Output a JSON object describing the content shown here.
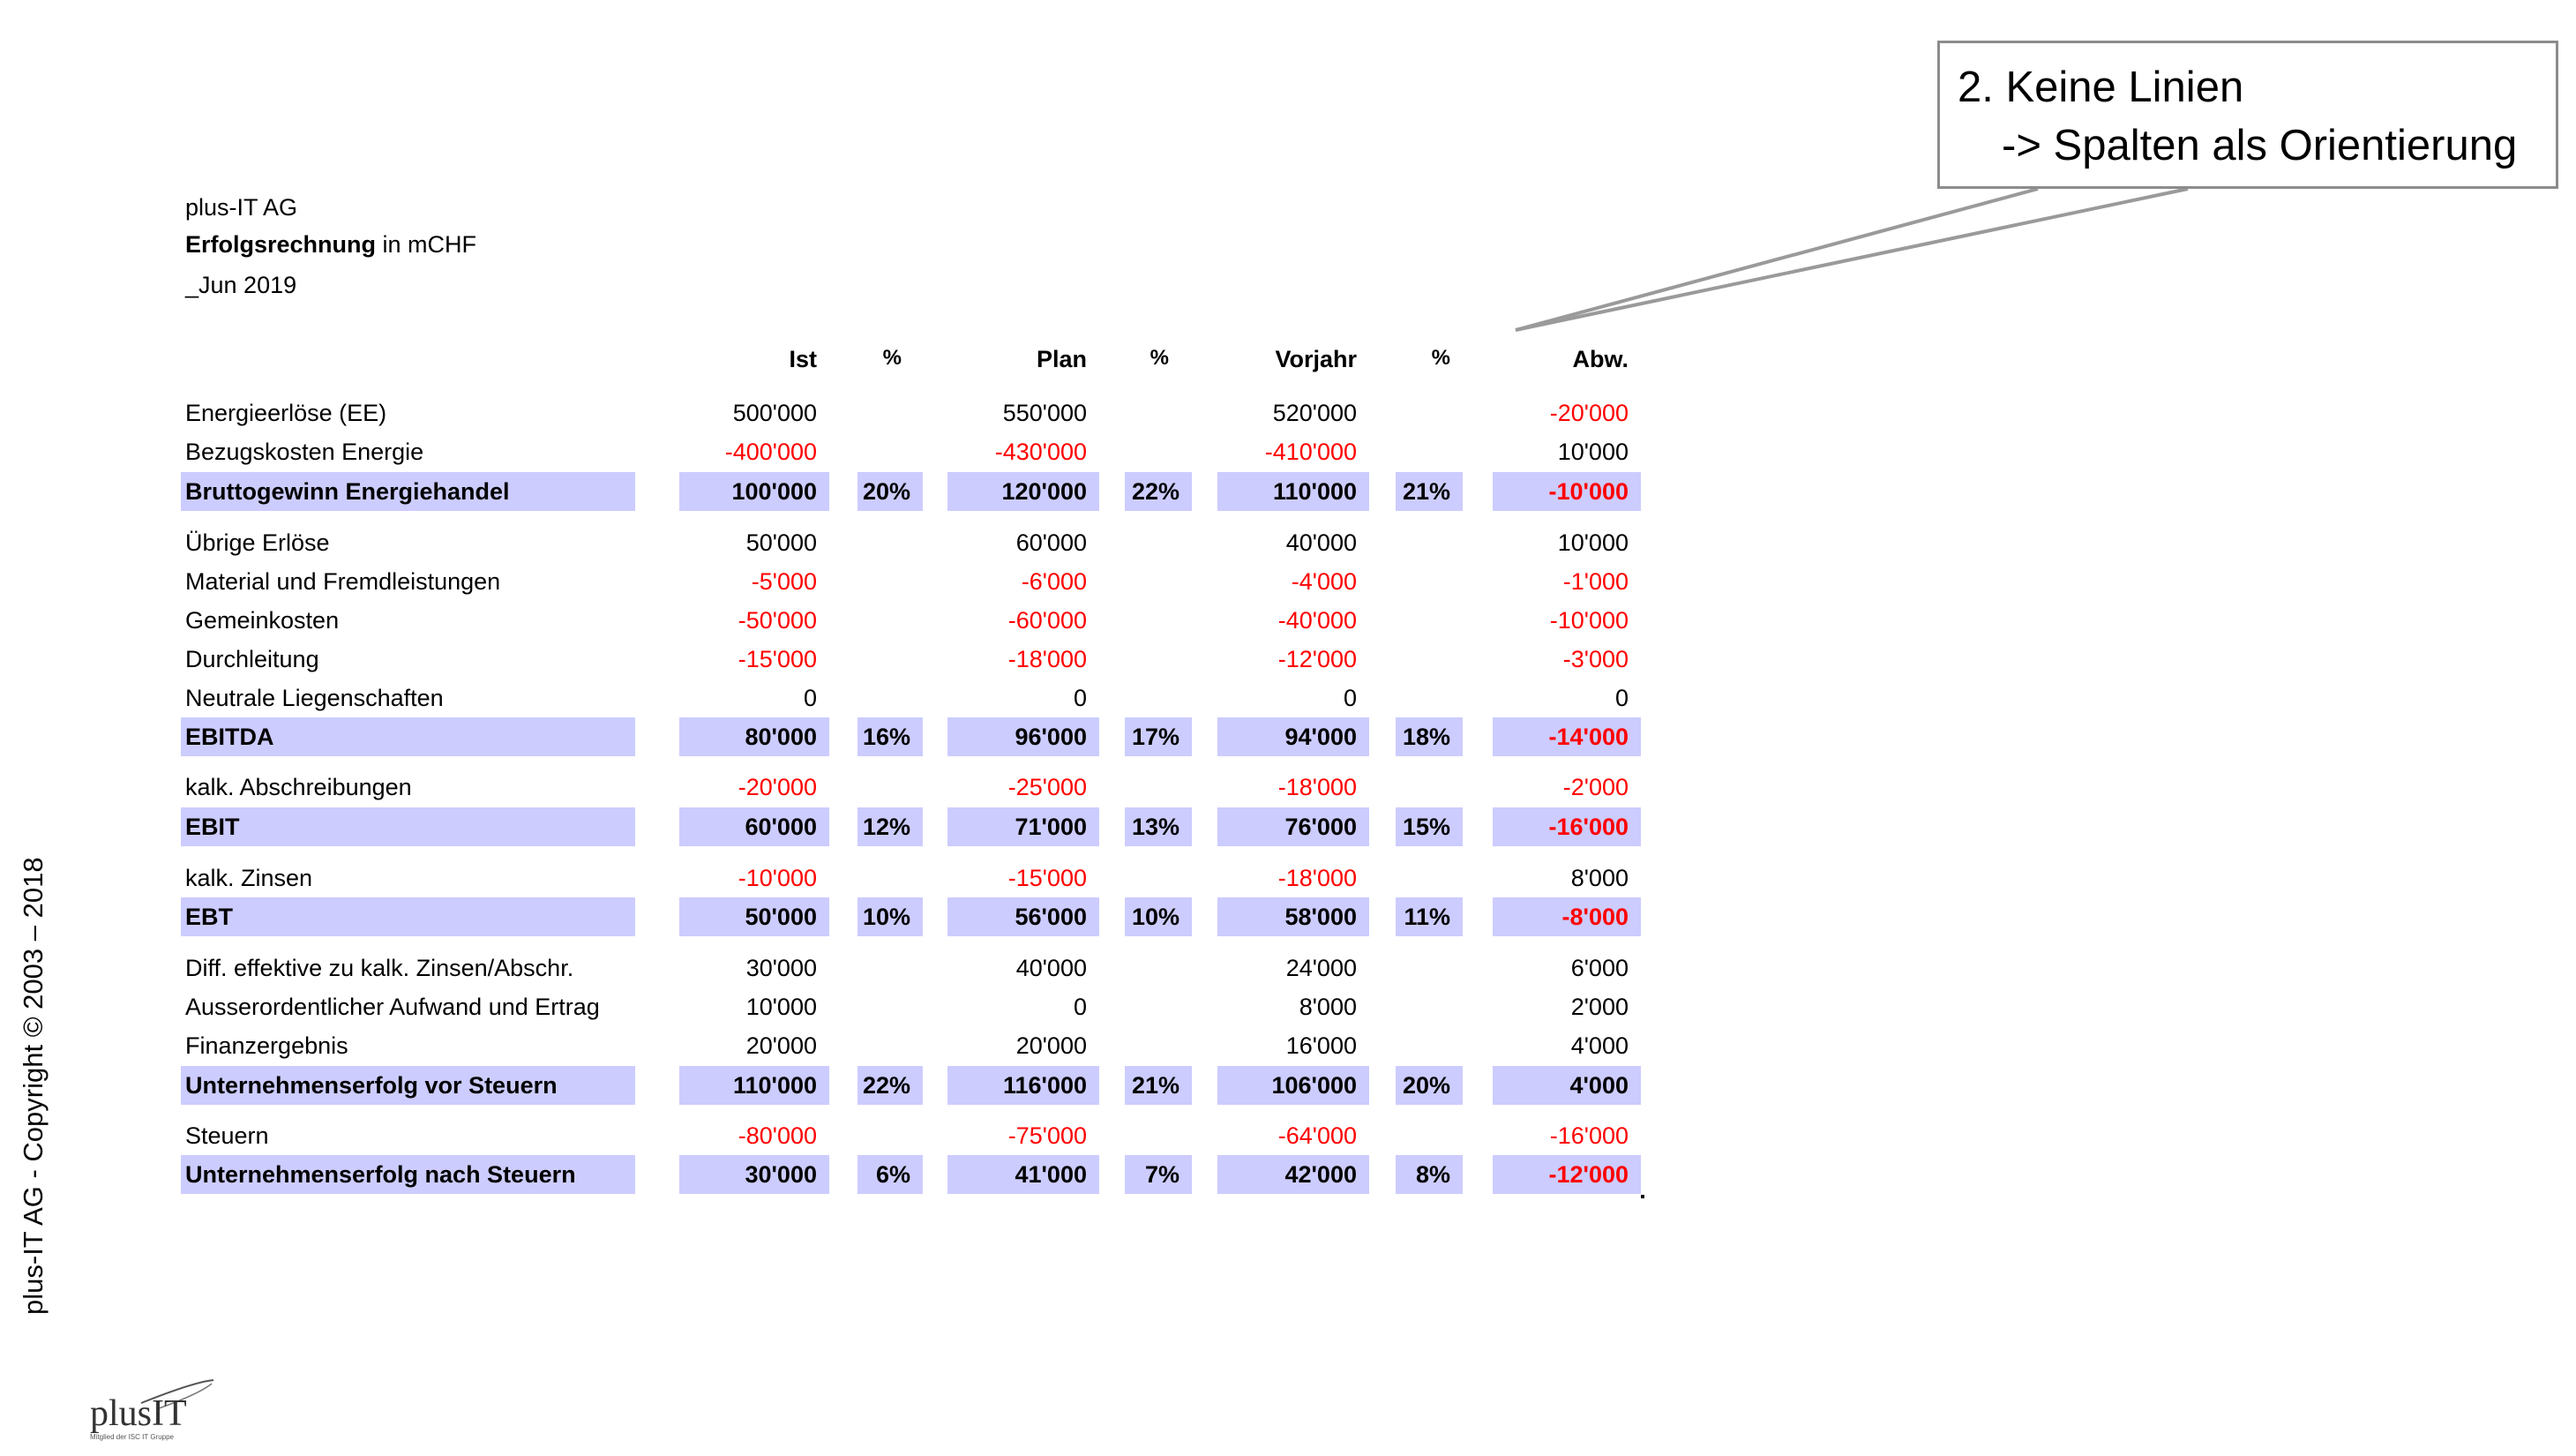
{
  "company": "plus-IT AG",
  "report_title_bold": "Erfolgsrechnung",
  "report_title_rest": " in mCHF",
  "period": "_Jun 2019",
  "callout": {
    "line1": "2. Keine Linien",
    "line2": "-> Spalten als Orientierung"
  },
  "copyright": "plus-IT AG - Copyright © 2003 – 2018",
  "logo": {
    "word": "plusIT",
    "tagline": "Mitglied der ISC IT Gruppe"
  },
  "columns": {
    "ist": "Ist",
    "pct1": "%",
    "plan": "Plan",
    "pct2": "%",
    "vorjahr": "Vorjahr",
    "pct3": "%",
    "abw": "Abw."
  },
  "rows": [
    {
      "label": "Energieerlöse (EE)",
      "ist": "500'000",
      "plan": "550'000",
      "vj": "520'000",
      "abw": "-20'000"
    },
    {
      "label": "Bezugskosten Energie",
      "ist": "-400'000",
      "plan": "-430'000",
      "vj": "-410'000",
      "abw": "10'000"
    },
    {
      "label": "Bruttogewinn Energiehandel",
      "ist": "100'000",
      "p1": "20%",
      "plan": "120'000",
      "p2": "22%",
      "vj": "110'000",
      "p3": "21%",
      "abw": "-10'000"
    },
    {
      "label": "Übrige Erlöse",
      "ist": "50'000",
      "plan": "60'000",
      "vj": "40'000",
      "abw": "10'000"
    },
    {
      "label": "Material und Fremdleistungen",
      "ist": "-5'000",
      "plan": "-6'000",
      "vj": "-4'000",
      "abw": "-1'000"
    },
    {
      "label": "Gemeinkosten",
      "ist": "-50'000",
      "plan": "-60'000",
      "vj": "-40'000",
      "abw": "-10'000"
    },
    {
      "label": "Durchleitung",
      "ist": "-15'000",
      "plan": "-18'000",
      "vj": "-12'000",
      "abw": "-3'000"
    },
    {
      "label": "Neutrale Liegenschaften",
      "ist": "0",
      "plan": "0",
      "vj": "0",
      "abw": "0"
    },
    {
      "label": "EBITDA",
      "ist": "80'000",
      "p1": "16%",
      "plan": "96'000",
      "p2": "17%",
      "vj": "94'000",
      "p3": "18%",
      "abw": "-14'000"
    },
    {
      "label": "kalk. Abschreibungen",
      "ist": "-20'000",
      "plan": "-25'000",
      "vj": "-18'000",
      "abw": "-2'000"
    },
    {
      "label": "EBIT",
      "ist": "60'000",
      "p1": "12%",
      "plan": "71'000",
      "p2": "13%",
      "vj": "76'000",
      "p3": "15%",
      "abw": "-16'000"
    },
    {
      "label": "kalk. Zinsen",
      "ist": "-10'000",
      "plan": "-15'000",
      "vj": "-18'000",
      "abw": "8'000"
    },
    {
      "label": "EBT",
      "ist": "50'000",
      "p1": "10%",
      "plan": "56'000",
      "p2": "10%",
      "vj": "58'000",
      "p3": "11%",
      "abw": "-8'000"
    },
    {
      "label": "Diff. effektive zu kalk. Zinsen/Abschr.",
      "ist": "30'000",
      "plan": "40'000",
      "vj": "24'000",
      "abw": "6'000"
    },
    {
      "label": "Ausserordentlicher Aufwand und Ertrag",
      "ist": "10'000",
      "plan": "0",
      "vj": "8'000",
      "abw": "2'000"
    },
    {
      "label": "Finanzergebnis",
      "ist": "20'000",
      "plan": "20'000",
      "vj": "16'000",
      "abw": "4'000"
    },
    {
      "label": "Unternehmenserfolg vor Steuern",
      "ist": "110'000",
      "p1": "22%",
      "plan": "116'000",
      "p2": "21%",
      "vj": "106'000",
      "p3": "20%",
      "abw": "4'000"
    },
    {
      "label": "Steuern",
      "ist": "-80'000",
      "plan": "-75'000",
      "vj": "-64'000",
      "abw": "-16'000"
    },
    {
      "label": "Unternehmenserfolg nach Steuern",
      "ist": "30'000",
      "p1": "6%",
      "plan": "41'000",
      "p2": "7%",
      "vj": "42'000",
      "p3": "8%",
      "abw": "-12'000"
    }
  ],
  "colors": {
    "highlight": "#ccccff",
    "negative": "#ff0000",
    "callout_border": "#8c8c8c"
  }
}
